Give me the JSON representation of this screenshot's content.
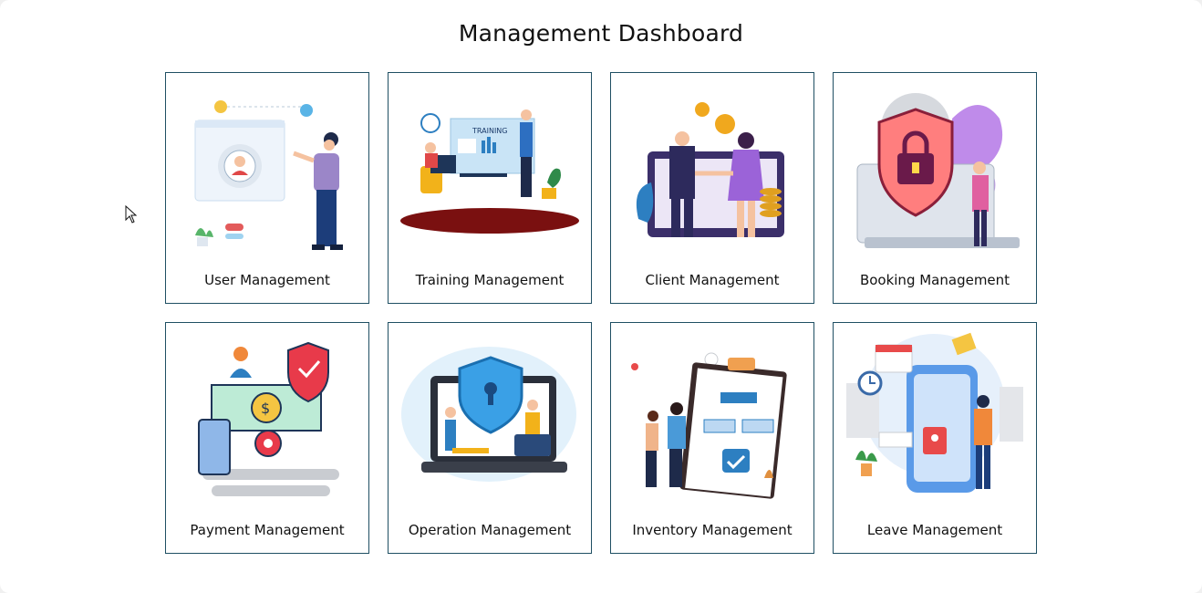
{
  "title": "Management Dashboard",
  "cards": [
    {
      "label": "User Management",
      "icon": "user-management-illustration"
    },
    {
      "label": "Training Management",
      "icon": "training-management-illustration"
    },
    {
      "label": "Client Management",
      "icon": "client-management-illustration"
    },
    {
      "label": "Booking Management",
      "icon": "booking-management-illustration"
    },
    {
      "label": "Payment Management",
      "icon": "payment-management-illustration"
    },
    {
      "label": "Operation Management",
      "icon": "operation-management-illustration"
    },
    {
      "label": "Inventory Management",
      "icon": "inventory-management-illustration"
    },
    {
      "label": "Leave Management",
      "icon": "leave-management-illustration"
    }
  ],
  "sign_text": "TRAINING",
  "colors": {
    "card_border": "#1f4f63",
    "background": "#ffffff"
  }
}
